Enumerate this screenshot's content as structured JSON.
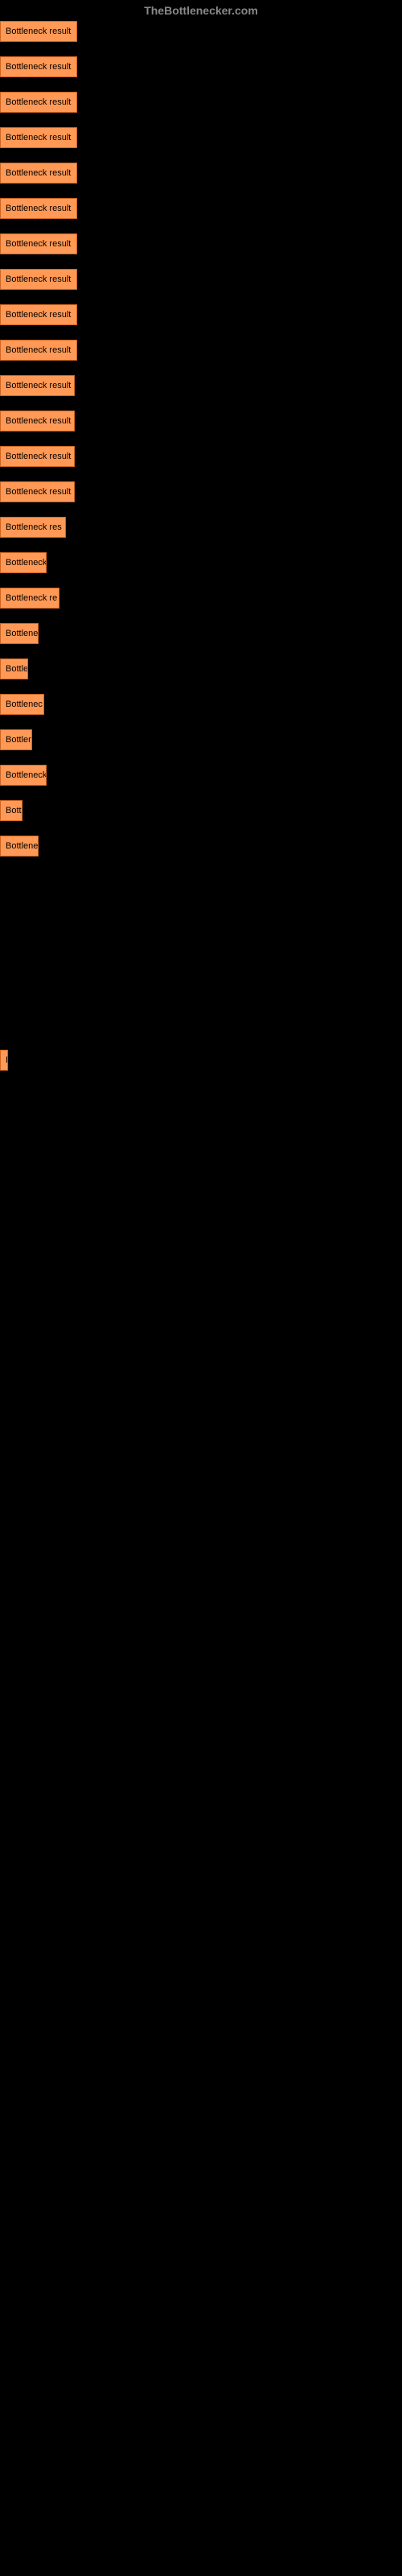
{
  "header": {
    "title": "TheBottlenecker.com"
  },
  "bars": [
    {
      "label": "Bottleneck result",
      "width": 96,
      "spacer": 18
    },
    {
      "label": "Bottleneck result",
      "width": 96,
      "spacer": 18
    },
    {
      "label": "Bottleneck result",
      "width": 96,
      "spacer": 18
    },
    {
      "label": "Bottleneck result",
      "width": 96,
      "spacer": 18
    },
    {
      "label": "Bottleneck result",
      "width": 96,
      "spacer": 18
    },
    {
      "label": "Bottleneck result",
      "width": 96,
      "spacer": 18
    },
    {
      "label": "Bottleneck result",
      "width": 96,
      "spacer": 18
    },
    {
      "label": "Bottleneck result",
      "width": 96,
      "spacer": 18
    },
    {
      "label": "Bottleneck result",
      "width": 96,
      "spacer": 18
    },
    {
      "label": "Bottleneck result",
      "width": 96,
      "spacer": 18
    },
    {
      "label": "Bottleneck result",
      "width": 93,
      "spacer": 18
    },
    {
      "label": "Bottleneck result",
      "width": 93,
      "spacer": 18
    },
    {
      "label": "Bottleneck result",
      "width": 93,
      "spacer": 18
    },
    {
      "label": "Bottleneck result",
      "width": 93,
      "spacer": 18
    },
    {
      "label": "Bottleneck res",
      "width": 82,
      "spacer": 18
    },
    {
      "label": "Bottleneck",
      "width": 58,
      "spacer": 18
    },
    {
      "label": "Bottleneck re",
      "width": 74,
      "spacer": 18
    },
    {
      "label": "Bottlene",
      "width": 48,
      "spacer": 18
    },
    {
      "label": "Bottle",
      "width": 35,
      "spacer": 18
    },
    {
      "label": "Bottlenec",
      "width": 55,
      "spacer": 18
    },
    {
      "label": "Bottlen",
      "width": 40,
      "spacer": 18
    },
    {
      "label": "Bottleneck",
      "width": 58,
      "spacer": 18
    },
    {
      "label": "Bott",
      "width": 28,
      "spacer": 18
    },
    {
      "label": "Bottlene",
      "width": 48,
      "spacer": 240
    },
    {
      "label": "B",
      "width": 10,
      "spacer": 18
    }
  ],
  "colors": {
    "bar_fill": "#FF9955",
    "bar_border": "#CC6622",
    "background": "#000000",
    "header_text": "#888888",
    "bar_text": "#000000"
  }
}
